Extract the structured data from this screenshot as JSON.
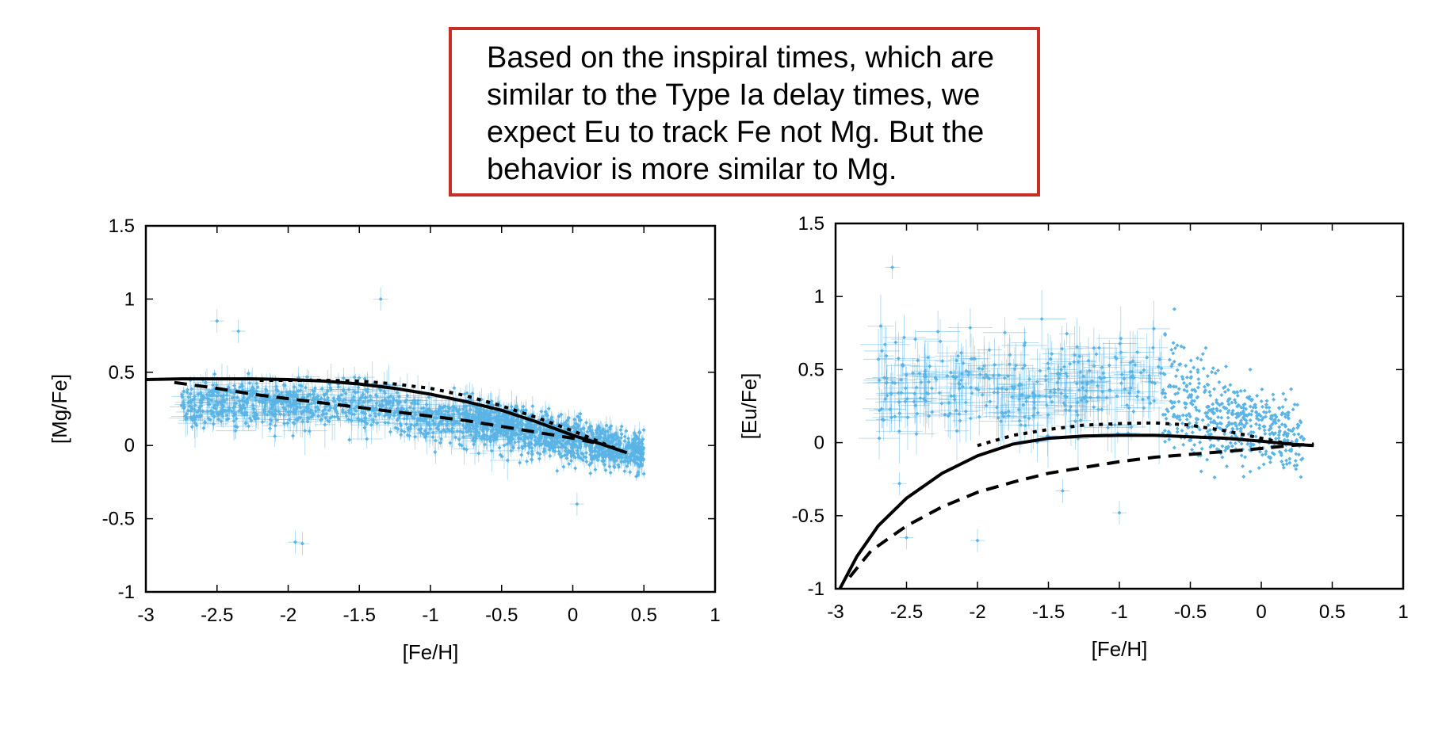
{
  "callout": {
    "text": "Based on the inspiral times, which are similar to the Type Ia delay times, we expect Eu to track Fe not Mg. But the behavior is more similar to Mg."
  },
  "colors": {
    "points": "#5ab4e5",
    "model": "#000000",
    "callout_border": "#c62f26"
  },
  "chart_data": [
    {
      "type": "scatter",
      "xlabel": "[Fe/H]",
      "ylabel": "[Mg/Fe]",
      "xlim": [
        -3,
        1
      ],
      "ylim": [
        -1,
        1.5
      ],
      "xticks": [
        -3,
        -2.5,
        -2,
        -1.5,
        -1,
        -0.5,
        0,
        0.5,
        1
      ],
      "yticks": [
        -1,
        -0.5,
        0,
        0.5,
        1,
        1.5
      ],
      "points_description": "dense cloud of stars with error bars; [Mg/Fe] ~0.3 at [Fe/H]=-2.5 declining to ~0 at [Fe/H]=+0.4",
      "outliers": [
        [
          -1.35,
          1.0
        ],
        [
          -1.95,
          -0.66
        ],
        [
          -1.9,
          -0.67
        ],
        [
          -2.5,
          0.85
        ],
        [
          -2.35,
          0.78
        ],
        [
          0.03,
          -0.4
        ]
      ],
      "series": [
        {
          "style": "solid",
          "x": [
            -3,
            -2.75,
            -2.5,
            -2.25,
            -2.0,
            -1.75,
            -1.5,
            -1.25,
            -1.0,
            -0.75,
            -0.5,
            -0.25,
            0.0,
            0.2,
            0.38
          ],
          "y": [
            0.45,
            0.455,
            0.455,
            0.455,
            0.45,
            0.44,
            0.42,
            0.39,
            0.35,
            0.3,
            0.24,
            0.16,
            0.07,
            0.01,
            -0.05
          ]
        },
        {
          "style": "dotted",
          "x": [
            -2.2,
            -2.0,
            -1.75,
            -1.5,
            -1.25,
            -1.0,
            -0.75,
            -0.5,
            -0.25,
            0.0,
            0.2,
            0.35
          ],
          "y": [
            0.445,
            0.445,
            0.445,
            0.44,
            0.42,
            0.39,
            0.34,
            0.27,
            0.19,
            0.1,
            0.02,
            -0.04
          ]
        },
        {
          "style": "dashed",
          "x": [
            -2.8,
            -2.5,
            -2.25,
            -2.0,
            -1.75,
            -1.5,
            -1.25,
            -1.0,
            -0.75,
            -0.5,
            -0.25,
            0.0,
            0.15
          ],
          "y": [
            0.43,
            0.39,
            0.35,
            0.32,
            0.29,
            0.26,
            0.23,
            0.2,
            0.17,
            0.13,
            0.09,
            0.05,
            0.02
          ]
        }
      ]
    },
    {
      "type": "scatter",
      "xlabel": "[Fe/H]",
      "ylabel": "[Eu/Fe]",
      "xlim": [
        -3,
        1
      ],
      "ylim": [
        -1,
        1.5
      ],
      "xticks": [
        -3,
        -2.5,
        -2,
        -1.5,
        -1,
        -0.5,
        0,
        0.5,
        1
      ],
      "yticks": [
        -1,
        -0.5,
        0,
        0.5,
        1,
        1.5
      ],
      "points_description": "stars with error bars; [Eu/Fe] ~0.4 with large scatter at low metallicity, converging to ~0 near [Fe/H]=0",
      "outliers": [
        [
          -2.6,
          1.2
        ],
        [
          -2.0,
          -0.67
        ],
        [
          -1.0,
          -0.48
        ],
        [
          -2.55,
          -0.28
        ],
        [
          -2.5,
          -0.65
        ],
        [
          -1.4,
          -0.33
        ]
      ],
      "series": [
        {
          "style": "solid",
          "x": [
            -2.97,
            -2.85,
            -2.7,
            -2.5,
            -2.25,
            -2.0,
            -1.75,
            -1.5,
            -1.25,
            -1.0,
            -0.75,
            -0.5,
            -0.25,
            0.0,
            0.2,
            0.37
          ],
          "y": [
            -1.0,
            -0.78,
            -0.57,
            -0.38,
            -0.21,
            -0.09,
            -0.01,
            0.03,
            0.045,
            0.05,
            0.05,
            0.04,
            0.03,
            0.01,
            -0.01,
            -0.02
          ]
        },
        {
          "style": "dotted",
          "x": [
            -2.0,
            -1.75,
            -1.5,
            -1.25,
            -1.0,
            -0.75,
            -0.5,
            -0.25,
            0.0,
            0.15,
            0.3
          ],
          "y": [
            -0.02,
            0.05,
            0.09,
            0.12,
            0.13,
            0.135,
            0.12,
            0.08,
            0.03,
            0.0,
            -0.02
          ]
        },
        {
          "style": "dashed",
          "x": [
            -2.9,
            -2.75,
            -2.5,
            -2.25,
            -2.0,
            -1.75,
            -1.5,
            -1.25,
            -1.0,
            -0.75,
            -0.5,
            -0.25,
            0.0,
            0.2,
            0.37
          ],
          "y": [
            -0.92,
            -0.74,
            -0.57,
            -0.44,
            -0.34,
            -0.27,
            -0.21,
            -0.17,
            -0.13,
            -0.1,
            -0.08,
            -0.06,
            -0.04,
            -0.02,
            -0.01
          ]
        }
      ]
    }
  ]
}
